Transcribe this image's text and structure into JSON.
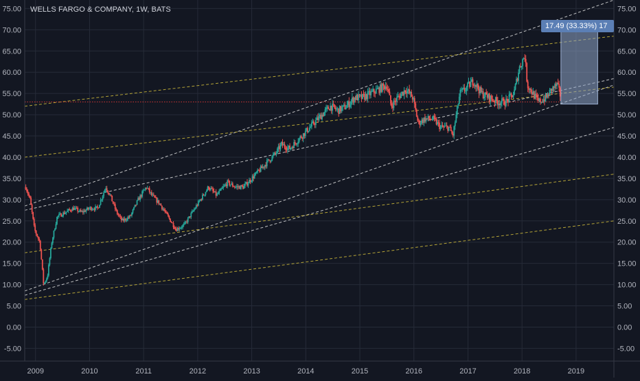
{
  "chart_data": {
    "type": "candlestick",
    "title": "WELLS FARGO & COMPANY, 1W, BATS",
    "x_ticks": [
      "2009",
      "2010",
      "2011",
      "2012",
      "2013",
      "2014",
      "2015",
      "2016",
      "2017",
      "2018",
      "2019"
    ],
    "y_ticks": [
      "75.00",
      "70.00",
      "65.00",
      "60.00",
      "55.00",
      "50.00",
      "45.00",
      "40.00",
      "35.00",
      "30.00",
      "25.00",
      "20.00",
      "15.00",
      "10.00",
      "5.00",
      "0.00",
      "-5.00"
    ],
    "ylim": [
      -8,
      77
    ],
    "xlim": [
      2008.8,
      2019.7
    ],
    "grid": true,
    "colors": {
      "up": "#26a69a",
      "down": "#ef5350",
      "background": "#131722",
      "grid": "#262b38",
      "text": "#b2b5be",
      "trend": "#e0e0e0",
      "channel": "#c8b53a",
      "level": "#e53935"
    },
    "price_path": [
      [
        2008.82,
        33
      ],
      [
        2008.9,
        30
      ],
      [
        2008.98,
        23
      ],
      [
        2009.08,
        20
      ],
      [
        2009.15,
        10
      ],
      [
        2009.22,
        12
      ],
      [
        2009.3,
        20
      ],
      [
        2009.4,
        26
      ],
      [
        2009.55,
        27
      ],
      [
        2009.7,
        28
      ],
      [
        2009.85,
        27
      ],
      [
        2010.0,
        28
      ],
      [
        2010.15,
        28
      ],
      [
        2010.3,
        33
      ],
      [
        2010.38,
        31
      ],
      [
        2010.5,
        27
      ],
      [
        2010.6,
        25
      ],
      [
        2010.75,
        26
      ],
      [
        2010.9,
        30
      ],
      [
        2011.05,
        33
      ],
      [
        2011.15,
        31
      ],
      [
        2011.3,
        29
      ],
      [
        2011.45,
        26
      ],
      [
        2011.6,
        23
      ],
      [
        2011.75,
        24
      ],
      [
        2011.9,
        27
      ],
      [
        2012.05,
        30
      ],
      [
        2012.2,
        33
      ],
      [
        2012.35,
        31
      ],
      [
        2012.55,
        34
      ],
      [
        2012.7,
        33
      ],
      [
        2012.85,
        33
      ],
      [
        2013.0,
        35
      ],
      [
        2013.15,
        37
      ],
      [
        2013.3,
        39
      ],
      [
        2013.45,
        41
      ],
      [
        2013.55,
        43
      ],
      [
        2013.7,
        42
      ],
      [
        2013.85,
        44
      ],
      [
        2014.0,
        46
      ],
      [
        2014.15,
        48
      ],
      [
        2014.3,
        50
      ],
      [
        2014.45,
        52
      ],
      [
        2014.6,
        51
      ],
      [
        2014.75,
        52
      ],
      [
        2014.9,
        54
      ],
      [
        2015.05,
        54
      ],
      [
        2015.2,
        55
      ],
      [
        2015.35,
        56
      ],
      [
        2015.5,
        57
      ],
      [
        2015.58,
        52
      ],
      [
        2015.7,
        54
      ],
      [
        2015.85,
        56
      ],
      [
        2015.98,
        54
      ],
      [
        2016.08,
        48
      ],
      [
        2016.2,
        49
      ],
      [
        2016.35,
        49
      ],
      [
        2016.5,
        47
      ],
      [
        2016.65,
        47
      ],
      [
        2016.72,
        45
      ],
      [
        2016.85,
        55
      ],
      [
        2016.95,
        56
      ],
      [
        2017.1,
        58
      ],
      [
        2017.25,
        55
      ],
      [
        2017.4,
        54
      ],
      [
        2017.55,
        53
      ],
      [
        2017.7,
        53
      ],
      [
        2017.85,
        55
      ],
      [
        2017.95,
        61
      ],
      [
        2018.05,
        64
      ],
      [
        2018.1,
        57
      ],
      [
        2018.2,
        55
      ],
      [
        2018.3,
        53
      ],
      [
        2018.45,
        54
      ],
      [
        2018.55,
        56
      ],
      [
        2018.65,
        57
      ],
      [
        2018.72,
        54
      ]
    ],
    "trend_lines": [
      {
        "style": "dashed",
        "color": "trend",
        "points": [
          [
            2008.8,
            28.5
          ],
          [
            2019.7,
            77
          ]
        ]
      },
      {
        "style": "dashed",
        "color": "trend",
        "points": [
          [
            2008.8,
            8.5
          ],
          [
            2019.7,
            57
          ]
        ]
      },
      {
        "style": "dashed",
        "color": "trend",
        "points": [
          [
            2008.8,
            7.5
          ],
          [
            2019.7,
            47
          ]
        ]
      },
      {
        "style": "dashed",
        "color": "trend",
        "points": [
          [
            2008.8,
            27.5
          ],
          [
            2019.7,
            58.5
          ]
        ]
      },
      {
        "style": "dashed",
        "color": "channel",
        "points": [
          [
            2008.8,
            52
          ],
          [
            2019.7,
            68.5
          ]
        ]
      },
      {
        "style": "dashed",
        "color": "channel",
        "points": [
          [
            2008.8,
            40
          ],
          [
            2019.7,
            56.5
          ]
        ]
      },
      {
        "style": "dashed",
        "color": "channel",
        "points": [
          [
            2008.8,
            17.5
          ],
          [
            2019.7,
            36
          ]
        ]
      },
      {
        "style": "dashed",
        "color": "channel",
        "points": [
          [
            2008.8,
            6.5
          ],
          [
            2019.7,
            25
          ]
        ]
      },
      {
        "style": "dotted",
        "color": "level",
        "points": [
          [
            2008.8,
            53
          ],
          [
            2018.72,
            53
          ]
        ]
      }
    ],
    "measure_box": {
      "x0": 2018.72,
      "x1": 2019.4,
      "y0": 52.5,
      "y1": 70,
      "label": "17.49 (33.33%) 17"
    }
  }
}
